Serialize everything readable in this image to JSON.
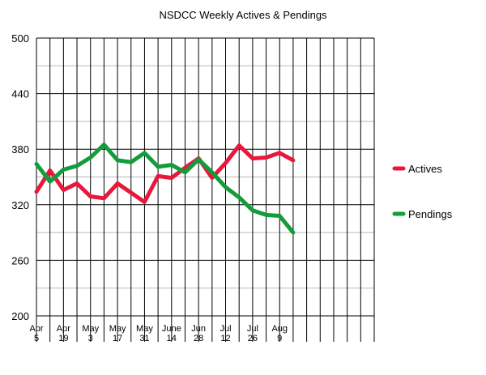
{
  "chart_data": {
    "type": "line",
    "title": "NSDCC Weekly Actives & Pendings",
    "xlabel": "",
    "ylabel": "",
    "ylim": [
      200,
      500
    ],
    "y_ticks": [
      "500",
      "440",
      "380",
      "320",
      "260",
      "200"
    ],
    "x_tick_labels": [
      [
        "Apr",
        "5"
      ],
      [
        "Apr",
        "19"
      ],
      [
        "May",
        "3"
      ],
      [
        "May",
        "17"
      ],
      [
        "May",
        "31"
      ],
      [
        "June",
        "14"
      ],
      [
        "Jun",
        "28"
      ],
      [
        "Jul",
        "12"
      ],
      [
        "Jul",
        "26"
      ],
      [
        "Aug",
        "9"
      ]
    ],
    "x_slots": 25,
    "grid": true,
    "legend_position": "right",
    "series": [
      {
        "name": "Actives",
        "color": "#e8183c",
        "values": [
          334,
          357,
          336,
          343,
          329,
          327,
          343,
          333,
          323,
          351,
          349,
          360,
          370,
          349,
          365,
          384,
          370,
          371,
          376,
          368
        ]
      },
      {
        "name": "Pendings",
        "color": "#139c3c",
        "values": [
          364,
          345,
          358,
          362,
          371,
          385,
          368,
          366,
          376,
          361,
          363,
          355,
          369,
          355,
          339,
          328,
          314,
          309,
          308,
          290
        ]
      }
    ]
  }
}
